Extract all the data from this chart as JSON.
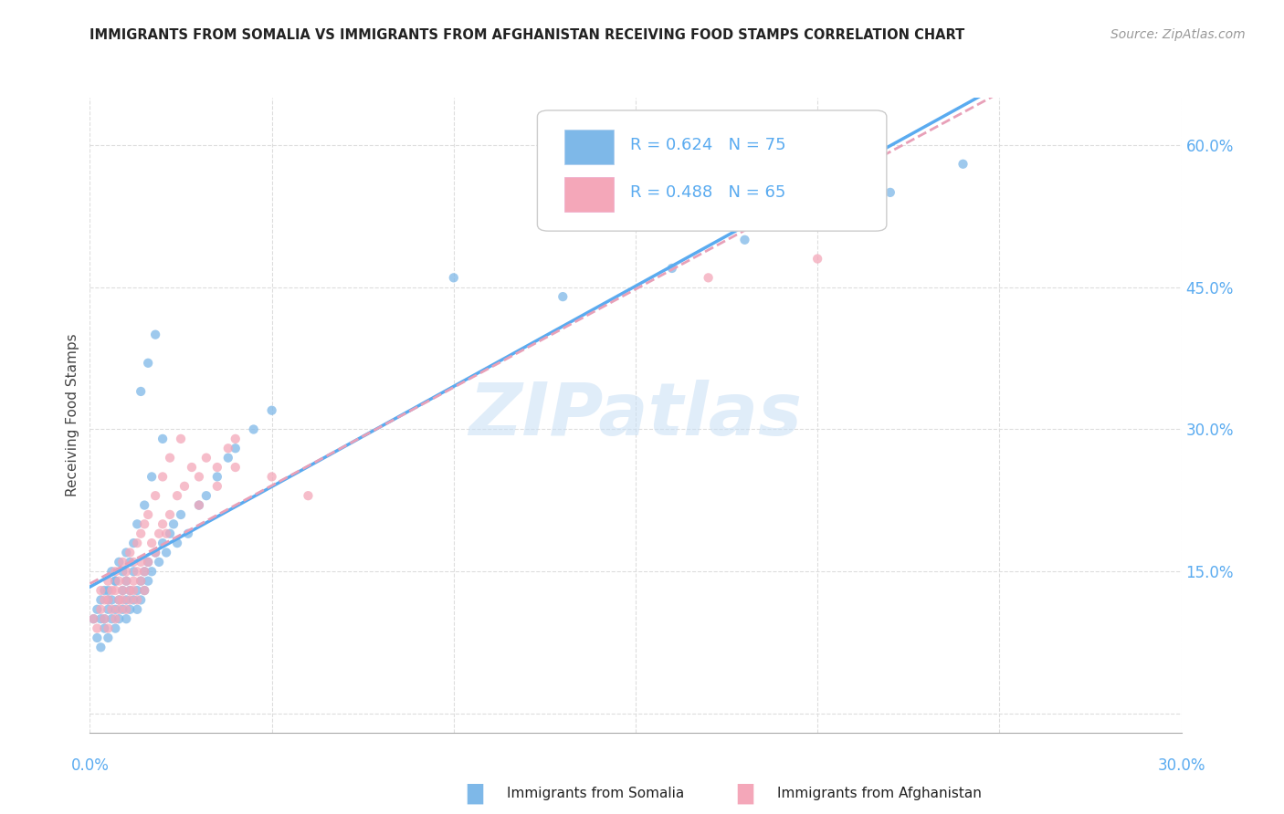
{
  "title": "IMMIGRANTS FROM SOMALIA VS IMMIGRANTS FROM AFGHANISTAN RECEIVING FOOD STAMPS CORRELATION CHART",
  "source": "Source: ZipAtlas.com",
  "ylabel": "Receiving Food Stamps",
  "ytick_values": [
    0.0,
    0.15,
    0.3,
    0.45,
    0.6
  ],
  "xlim": [
    0.0,
    0.3
  ],
  "ylim": [
    -0.02,
    0.65
  ],
  "somalia_color": "#7eb8e8",
  "afghanistan_color": "#f4a7b9",
  "somalia_line_color": "#5aabf0",
  "afghanistan_line_color": "#e8a0b8",
  "somalia_R": 0.624,
  "somalia_N": 75,
  "afghanistan_R": 0.488,
  "afghanistan_N": 65,
  "watermark": "ZIPatlas",
  "background_color": "#ffffff",
  "grid_color": "#dddddd",
  "somalia_x": [
    0.001,
    0.002,
    0.003,
    0.003,
    0.004,
    0.004,
    0.005,
    0.005,
    0.005,
    0.006,
    0.006,
    0.007,
    0.007,
    0.007,
    0.008,
    0.008,
    0.009,
    0.009,
    0.01,
    0.01,
    0.01,
    0.011,
    0.011,
    0.012,
    0.012,
    0.013,
    0.013,
    0.014,
    0.014,
    0.015,
    0.015,
    0.016,
    0.016,
    0.017,
    0.018,
    0.019,
    0.02,
    0.021,
    0.022,
    0.023,
    0.024,
    0.025,
    0.027,
    0.03,
    0.032,
    0.035,
    0.038,
    0.04,
    0.045,
    0.05,
    0.002,
    0.003,
    0.004,
    0.005,
    0.006,
    0.007,
    0.008,
    0.009,
    0.01,
    0.011,
    0.012,
    0.013,
    0.015,
    0.017,
    0.02,
    0.13,
    0.16,
    0.18,
    0.2,
    0.22,
    0.014,
    0.016,
    0.018,
    0.24,
    0.1
  ],
  "somalia_y": [
    0.1,
    0.08,
    0.12,
    0.07,
    0.1,
    0.09,
    0.11,
    0.08,
    0.13,
    0.1,
    0.12,
    0.09,
    0.11,
    0.14,
    0.1,
    0.12,
    0.11,
    0.13,
    0.12,
    0.1,
    0.14,
    0.13,
    0.11,
    0.12,
    0.15,
    0.13,
    0.11,
    0.14,
    0.12,
    0.15,
    0.13,
    0.16,
    0.14,
    0.15,
    0.17,
    0.16,
    0.18,
    0.17,
    0.19,
    0.2,
    0.18,
    0.21,
    0.19,
    0.22,
    0.23,
    0.25,
    0.27,
    0.28,
    0.3,
    0.32,
    0.11,
    0.1,
    0.13,
    0.12,
    0.15,
    0.14,
    0.16,
    0.15,
    0.17,
    0.16,
    0.18,
    0.2,
    0.22,
    0.25,
    0.29,
    0.44,
    0.47,
    0.5,
    0.52,
    0.55,
    0.34,
    0.37,
    0.4,
    0.58,
    0.46
  ],
  "afghanistan_x": [
    0.001,
    0.002,
    0.003,
    0.004,
    0.005,
    0.005,
    0.006,
    0.007,
    0.007,
    0.008,
    0.008,
    0.009,
    0.009,
    0.01,
    0.01,
    0.011,
    0.011,
    0.012,
    0.012,
    0.013,
    0.013,
    0.014,
    0.014,
    0.015,
    0.015,
    0.016,
    0.017,
    0.018,
    0.019,
    0.02,
    0.021,
    0.022,
    0.024,
    0.026,
    0.028,
    0.03,
    0.032,
    0.035,
    0.038,
    0.04,
    0.003,
    0.004,
    0.005,
    0.006,
    0.007,
    0.008,
    0.009,
    0.01,
    0.011,
    0.012,
    0.013,
    0.014,
    0.015,
    0.016,
    0.018,
    0.02,
    0.022,
    0.025,
    0.17,
    0.2,
    0.03,
    0.035,
    0.04,
    0.05,
    0.06
  ],
  "afghanistan_y": [
    0.1,
    0.09,
    0.11,
    0.1,
    0.12,
    0.09,
    0.11,
    0.13,
    0.1,
    0.12,
    0.11,
    0.13,
    0.12,
    0.11,
    0.14,
    0.13,
    0.12,
    0.14,
    0.13,
    0.15,
    0.12,
    0.14,
    0.16,
    0.15,
    0.13,
    0.16,
    0.18,
    0.17,
    0.19,
    0.2,
    0.19,
    0.21,
    0.23,
    0.24,
    0.26,
    0.25,
    0.27,
    0.26,
    0.28,
    0.29,
    0.13,
    0.12,
    0.14,
    0.13,
    0.15,
    0.14,
    0.16,
    0.15,
    0.17,
    0.16,
    0.18,
    0.19,
    0.2,
    0.21,
    0.23,
    0.25,
    0.27,
    0.29,
    0.46,
    0.48,
    0.22,
    0.24,
    0.26,
    0.25,
    0.23
  ]
}
